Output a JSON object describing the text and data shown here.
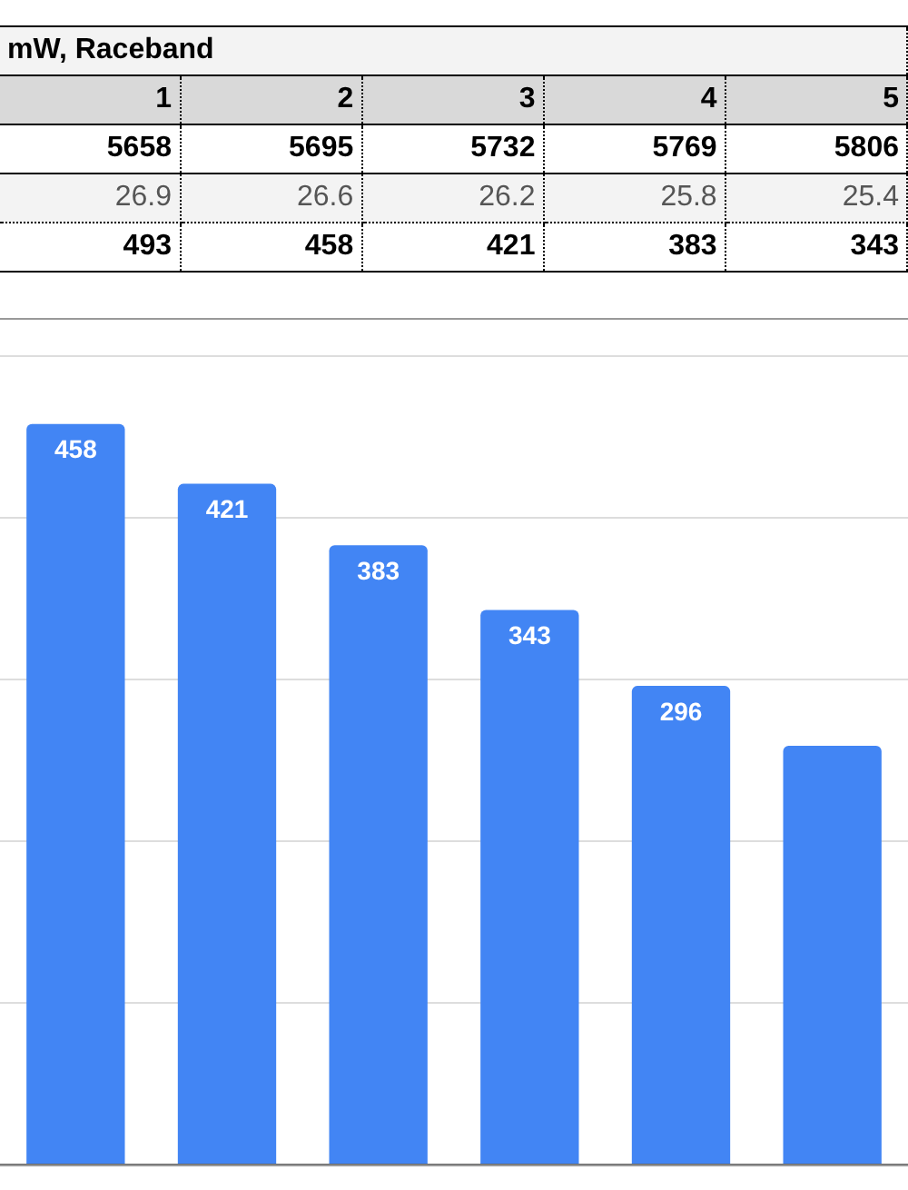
{
  "chart_data": {
    "type": "bar",
    "title": "mW, Raceband",
    "annotations": [
      "1",
      "2",
      "3",
      "4",
      "5",
      "5658",
      "5695",
      "5732",
      "5769",
      "5806",
      "26.9",
      "26.6",
      "26.2",
      "25.8",
      "25.4",
      "493",
      "458",
      "421",
      "383",
      "343"
    ],
    "categories": [
      null,
      null,
      null,
      null,
      null,
      null
    ],
    "values": [
      458,
      421,
      383,
      343,
      296,
      259
    ],
    "value_labels": [
      "458",
      "421",
      "383",
      "343",
      "296",
      null
    ],
    "color": "#4285f4",
    "ylim": [
      0,
      500
    ],
    "yticks": [
      {
        "value": 0,
        "label": null
      },
      {
        "value": 100,
        "label": null
      },
      {
        "value": 200,
        "label": null
      },
      {
        "value": 300,
        "label": null
      },
      {
        "value": 400,
        "label": null
      },
      {
        "value": 500,
        "label": null
      }
    ],
    "grid": "y",
    "tick_labels": false
  }
}
